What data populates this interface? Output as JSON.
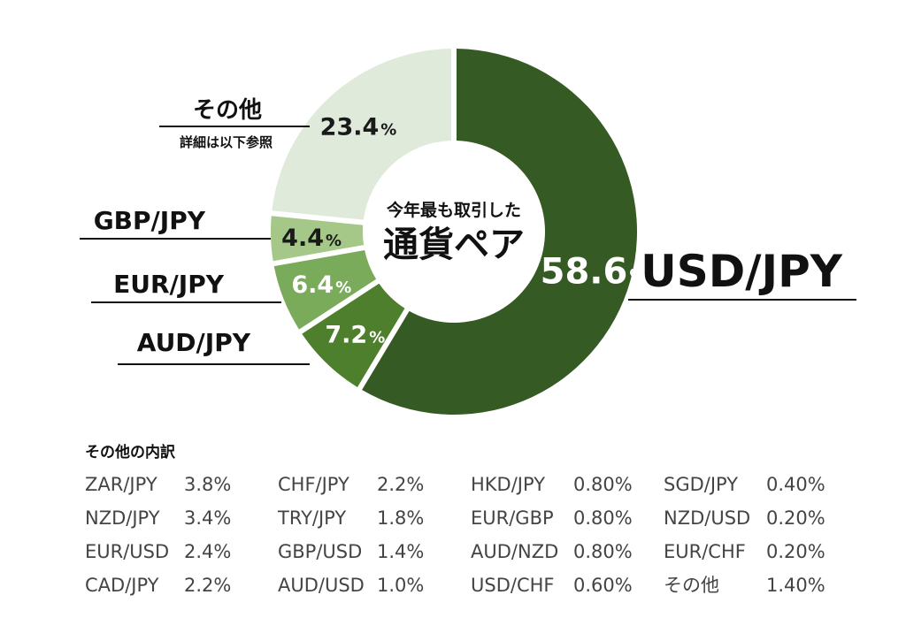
{
  "chart_data": {
    "type": "pie",
    "style": "donut",
    "center_title_top": "今年最も取引した",
    "center_title_main": "通貨ペア",
    "percent_unit": "%",
    "slices": [
      {
        "label": "USD/JPY",
        "value": 58.6,
        "value_text": "58.6",
        "color": "#365a24"
      },
      {
        "label": "AUD/JPY",
        "value": 7.2,
        "value_text": "7.2",
        "color": "#4e7f2c"
      },
      {
        "label": "EUR/JPY",
        "value": 6.4,
        "value_text": "6.4",
        "color": "#7aab5a"
      },
      {
        "label": "GBP/JPY",
        "value": 4.4,
        "value_text": "4.4",
        "color": "#a5c889"
      },
      {
        "label": "その他",
        "note": "詳細は以下参照",
        "value": 23.4,
        "value_text": "23.4",
        "color": "#dfeadb"
      }
    ]
  },
  "breakdown": {
    "title": "その他の内訳",
    "columns": [
      [
        {
          "name": "ZAR/JPY",
          "value": "3.8%"
        },
        {
          "name": "NZD/JPY",
          "value": "3.4%"
        },
        {
          "name": "EUR/USD",
          "value": "2.4%"
        },
        {
          "name": "CAD/JPY",
          "value": "2.2%"
        }
      ],
      [
        {
          "name": "CHF/JPY",
          "value": "2.2%"
        },
        {
          "name": "TRY/JPY",
          "value": "1.8%"
        },
        {
          "name": "GBP/USD",
          "value": "1.4%"
        },
        {
          "name": "AUD/USD",
          "value": "1.0%"
        }
      ],
      [
        {
          "name": "HKD/JPY",
          "value": "0.80%"
        },
        {
          "name": "EUR/GBP",
          "value": "0.80%"
        },
        {
          "name": "AUD/NZD",
          "value": "0.80%"
        },
        {
          "name": "USD/CHF",
          "value": "0.60%"
        }
      ],
      [
        {
          "name": "SGD/JPY",
          "value": "0.40%"
        },
        {
          "name": "NZD/USD",
          "value": "0.20%"
        },
        {
          "name": "EUR/CHF",
          "value": "0.20%"
        },
        {
          "name": "その他",
          "value": "1.40%"
        }
      ]
    ]
  }
}
